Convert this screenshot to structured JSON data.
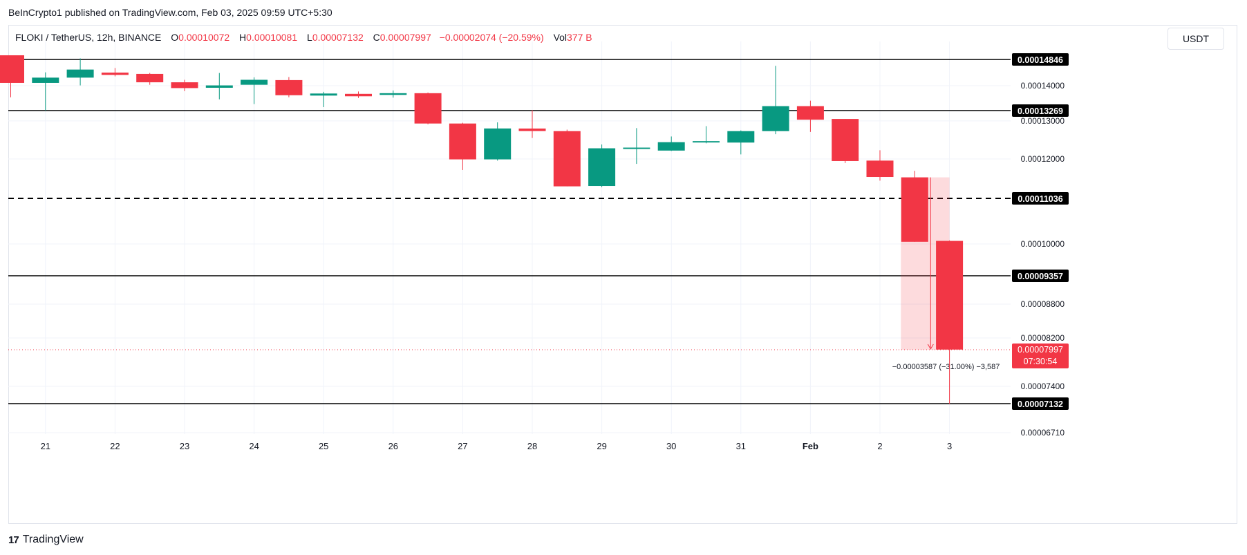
{
  "header": {
    "published": "BeInCrypto1 published on TradingView.com, Feb 03, 2025 09:59 UTC+5:30",
    "symbol": "FLOKI / TetherUS, 12h, BINANCE",
    "o_label": "O",
    "o_value": "0.00010072",
    "h_label": "H",
    "h_value": "0.00010081",
    "l_label": "L",
    "l_value": "0.00007132",
    "c_label": "C",
    "c_value": "0.00007997",
    "change": "−0.00002074 (−20.59%)",
    "vol_label": "Vol",
    "vol_value": "377 B",
    "currency": "USDT"
  },
  "footer": {
    "brand": "TradingView"
  },
  "colors": {
    "up": "#089981",
    "down": "#f23645",
    "text": "#131722",
    "grid": "#f0f3fa"
  },
  "chart_data": {
    "type": "candlestick",
    "xlabels": [
      "21",
      "22",
      "23",
      "24",
      "25",
      "26",
      "27",
      "28",
      "29",
      "30",
      "31",
      "Feb",
      "2",
      "3"
    ],
    "candles": [
      {
        "o": 0.0001498,
        "h": 0.0001496,
        "l": 0.0001366,
        "c": 0.0001409
      },
      {
        "o": 0.0001409,
        "h": 0.0001443,
        "l": 0.0001327,
        "c": 0.0001426
      },
      {
        "o": 0.0001426,
        "h": 0.0001488,
        "l": 0.0001401,
        "c": 0.0001452
      },
      {
        "o": 0.000144,
        "h": 0.0001457,
        "l": 0.000143,
        "c": 0.0001437
      },
      {
        "o": 0.0001438,
        "h": 0.0001441,
        "l": 0.0001403,
        "c": 0.0001411
      },
      {
        "o": 0.0001411,
        "h": 0.0001419,
        "l": 0.0001384,
        "c": 0.0001393
      },
      {
        "o": 0.0001394,
        "h": 0.0001441,
        "l": 0.000136,
        "c": 0.0001401
      },
      {
        "o": 0.0001403,
        "h": 0.0001427,
        "l": 0.0001346,
        "c": 0.0001419
      },
      {
        "o": 0.0001418,
        "h": 0.0001428,
        "l": 0.0001366,
        "c": 0.0001372
      },
      {
        "o": 0.0001373,
        "h": 0.0001382,
        "l": 0.0001337,
        "c": 0.0001375
      },
      {
        "o": 0.0001374,
        "h": 0.0001383,
        "l": 0.0001364,
        "c": 0.0001371
      },
      {
        "o": 0.0001373,
        "h": 0.0001386,
        "l": 0.0001365,
        "c": 0.0001378
      },
      {
        "o": 0.0001378,
        "h": 0.000138,
        "l": 0.0001291,
        "c": 0.0001293
      },
      {
        "o": 0.0001293,
        "h": 0.0001295,
        "l": 0.0001173,
        "c": 0.0001199
      },
      {
        "o": 0.0001199,
        "h": 0.0001296,
        "l": 0.0001196,
        "c": 0.000128
      },
      {
        "o": 0.0001278,
        "h": 0.0001328,
        "l": 0.0001255,
        "c": 0.0001275
      },
      {
        "o": 0.0001273,
        "h": 0.0001277,
        "l": 0.0001134,
        "c": 0.0001133
      },
      {
        "o": 0.0001134,
        "h": 0.0001238,
        "l": 0.0001131,
        "c": 0.0001228
      },
      {
        "o": 0.0001228,
        "h": 0.0001281,
        "l": 0.0001188,
        "c": 0.0001228
      },
      {
        "o": 0.0001222,
        "h": 0.0001259,
        "l": 0.0001221,
        "c": 0.0001244
      },
      {
        "o": 0.0001245,
        "h": 0.0001286,
        "l": 0.0001241,
        "c": 0.0001245
      },
      {
        "o": 0.0001243,
        "h": 0.0001275,
        "l": 0.0001212,
        "c": 0.0001273
      },
      {
        "o": 0.0001273,
        "h": 0.0001464,
        "l": 0.0001265,
        "c": 0.000134
      },
      {
        "o": 0.000134,
        "h": 0.0001356,
        "l": 0.0001271,
        "c": 0.0001303
      },
      {
        "o": 0.0001305,
        "h": 0.0001305,
        "l": 0.000119,
        "c": 0.0001195
      },
      {
        "o": 0.0001196,
        "h": 0.0001223,
        "l": 0.0001147,
        "c": 0.0001156
      },
      {
        "o": 0.0001155,
        "h": 0.0001171,
        "l": 0.0001005,
        "c": 0.0001005
      },
      {
        "o": 0.0001007,
        "h": 0.0001008,
        "l": 7.13e-05,
        "c": 8e-05
      }
    ],
    "yticks": [
      "0.00014000",
      "0.00013000",
      "0.00012000",
      "0.00010000",
      "0.00008800",
      "0.00008200",
      "0.00007400",
      "0.00006710"
    ],
    "levels": [
      {
        "value": "0.00014846",
        "style": "solid"
      },
      {
        "value": "0.00013269",
        "style": "solid"
      },
      {
        "value": "0.00011036",
        "style": "dashed"
      },
      {
        "value": "0.00009357",
        "style": "solid"
      },
      {
        "value": "0.00007132",
        "style": "solid"
      }
    ],
    "last_price": "0.00007997",
    "countdown": "07:30:54",
    "measure_label": "−0.00003587 (−31.00%) −3,587"
  }
}
